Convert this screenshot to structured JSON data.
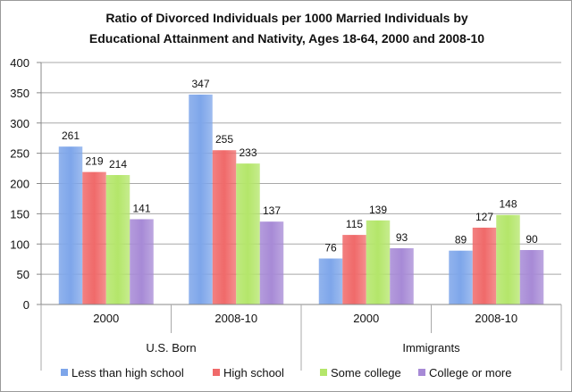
{
  "chart_data": {
    "type": "bar",
    "title_lines": [
      "Ratio of Divorced Individuals per 1000 Married Individuals by",
      "Educational Attainment and Nativity, Ages 18-64, 2000 and 2008-10"
    ],
    "groups": [
      {
        "label": "U.S. Born",
        "categories": [
          "2000",
          "2008-10"
        ]
      },
      {
        "label": "Immigrants",
        "categories": [
          "2000",
          "2008-10"
        ]
      }
    ],
    "categories": [
      "U.S. Born 2000",
      "U.S. Born 2008-10",
      "Immigrants 2000",
      "Immigrants 2008-10"
    ],
    "series": [
      {
        "name": "Less than high school",
        "color": "#7ea6ea",
        "values": [
          261,
          347,
          76,
          89
        ]
      },
      {
        "name": "High school",
        "color": "#f06a6a",
        "values": [
          219,
          255,
          115,
          127
        ]
      },
      {
        "name": "Some college",
        "color": "#b4e66a",
        "values": [
          214,
          233,
          139,
          148
        ]
      },
      {
        "name": "College or more",
        "color": "#a78ad6",
        "values": [
          141,
          137,
          93,
          90
        ]
      }
    ],
    "ylim": [
      0,
      400
    ],
    "yticks": [
      0,
      50,
      100,
      150,
      200,
      250,
      300,
      350,
      400
    ],
    "grid": true,
    "legend_position": "bottom",
    "xlabel": "",
    "ylabel": ""
  }
}
